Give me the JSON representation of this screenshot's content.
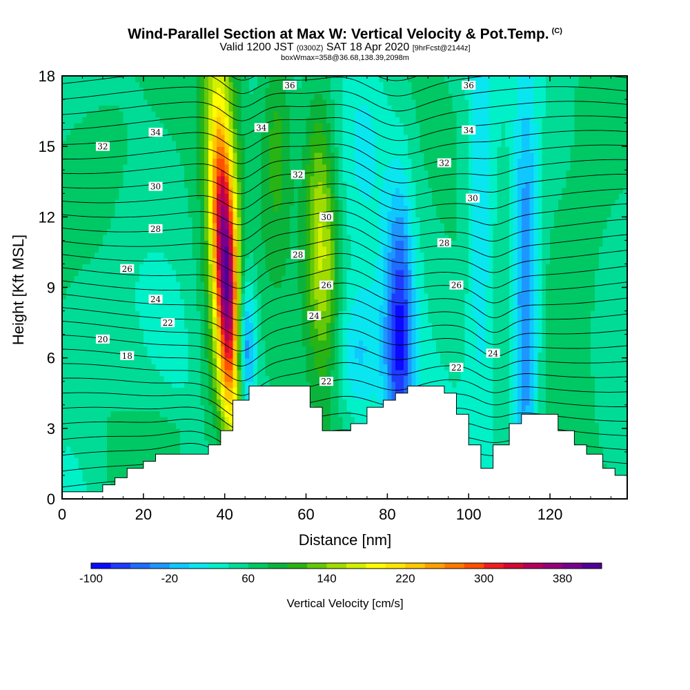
{
  "title": {
    "main": "Wind-Parallel Section at Max W: Vertical Velocity & Pot.Temp.",
    "copyright_mark": "(C)",
    "valid_prefix": "Valid 1200 JST",
    "valid_zulu": "(0300Z)",
    "valid_date": "SAT 18 Apr 2020",
    "forecast_info": "[9hrFcst@2144z]",
    "box_info": "boxWmax=358@36.68,138.39,2098m"
  },
  "chart_data": {
    "type": "heatmap",
    "xlabel": "Distance [nm]",
    "ylabel": "Height [Kft MSL]",
    "xlim": [
      0,
      139
    ],
    "ylim": [
      0,
      18
    ],
    "x_ticks": [
      "0",
      "20",
      "40",
      "60",
      "80",
      "100",
      "120"
    ],
    "y_ticks": [
      "0",
      "3",
      "6",
      "9",
      "12",
      "15",
      "18"
    ],
    "colorbar": {
      "label": "Vertical Velocity [cm/s]",
      "tick_labels": [
        "-100",
        "-20",
        "60",
        "140",
        "220",
        "300",
        "380"
      ],
      "levels_min": -100,
      "levels_max": 420,
      "step": 20,
      "colors": [
        "#0a0aff",
        "#1e3cff",
        "#1e6eff",
        "#1e96ff",
        "#0fc8ff",
        "#0ae6f0",
        "#00f0c8",
        "#00dc96",
        "#00c864",
        "#0ab43c",
        "#28b414",
        "#64c80a",
        "#a0dc00",
        "#d2f000",
        "#ffff00",
        "#ffe600",
        "#ffc800",
        "#ffa000",
        "#ff7800",
        "#ff5000",
        "#f01e1e",
        "#d20a32",
        "#b4005a",
        "#960078",
        "#78008c",
        "#500096"
      ]
    },
    "theta_labels": [
      {
        "value": "36",
        "x": 56,
        "y": 17.6
      },
      {
        "value": "36",
        "x": 100,
        "y": 17.6
      },
      {
        "value": "34",
        "x": 23,
        "y": 15.6
      },
      {
        "value": "34",
        "x": 49,
        "y": 15.8
      },
      {
        "value": "34",
        "x": 100,
        "y": 15.7
      },
      {
        "value": "32",
        "x": 10,
        "y": 15.0
      },
      {
        "value": "32",
        "x": 58,
        "y": 13.8
      },
      {
        "value": "32",
        "x": 94,
        "y": 14.3
      },
      {
        "value": "30",
        "x": 23,
        "y": 13.3
      },
      {
        "value": "30",
        "x": 65,
        "y": 12.0
      },
      {
        "value": "30",
        "x": 101,
        "y": 12.8
      },
      {
        "value": "28",
        "x": 23,
        "y": 11.5
      },
      {
        "value": "28",
        "x": 58,
        "y": 10.4
      },
      {
        "value": "28",
        "x": 94,
        "y": 10.9
      },
      {
        "value": "26",
        "x": 16,
        "y": 9.8
      },
      {
        "value": "26",
        "x": 65,
        "y": 9.1
      },
      {
        "value": "26",
        "x": 97,
        "y": 9.1
      },
      {
        "value": "24",
        "x": 23,
        "y": 8.5
      },
      {
        "value": "24",
        "x": 62,
        "y": 7.8
      },
      {
        "value": "24",
        "x": 106,
        "y": 6.2
      },
      {
        "value": "22",
        "x": 26,
        "y": 7.5
      },
      {
        "value": "22",
        "x": 65,
        "y": 5.0
      },
      {
        "value": "22",
        "x": 97,
        "y": 5.6
      },
      {
        "value": "20",
        "x": 10,
        "y": 6.8
      },
      {
        "value": "18",
        "x": 16,
        "y": 6.1
      }
    ],
    "terrain_kft": [
      [
        0,
        0.3
      ],
      [
        10,
        0.3
      ],
      [
        10,
        0.6
      ],
      [
        13,
        0.6
      ],
      [
        13,
        0.9
      ],
      [
        16,
        0.9
      ],
      [
        16,
        1.3
      ],
      [
        20,
        1.3
      ],
      [
        20,
        1.6
      ],
      [
        23,
        1.6
      ],
      [
        23,
        1.9
      ],
      [
        36,
        1.9
      ],
      [
        36,
        2.3
      ],
      [
        39,
        2.3
      ],
      [
        39,
        2.9
      ],
      [
        42,
        2.9
      ],
      [
        42,
        4.2
      ],
      [
        46,
        4.2
      ],
      [
        46,
        4.8
      ],
      [
        61,
        4.8
      ],
      [
        61,
        3.9
      ],
      [
        64,
        3.9
      ],
      [
        64,
        2.9
      ],
      [
        71,
        2.9
      ],
      [
        71,
        3.2
      ],
      [
        75,
        3.2
      ],
      [
        75,
        3.9
      ],
      [
        79,
        3.9
      ],
      [
        79,
        4.2
      ],
      [
        82,
        4.2
      ],
      [
        82,
        4.5
      ],
      [
        85,
        4.5
      ],
      [
        85,
        4.8
      ],
      [
        94,
        4.8
      ],
      [
        94,
        4.5
      ],
      [
        97,
        4.5
      ],
      [
        97,
        3.6
      ],
      [
        100,
        3.6
      ],
      [
        100,
        2.3
      ],
      [
        103,
        2.3
      ],
      [
        103,
        1.3
      ],
      [
        106,
        1.3
      ],
      [
        106,
        2.3
      ],
      [
        110,
        2.3
      ],
      [
        110,
        3.2
      ],
      [
        113,
        3.2
      ],
      [
        113,
        3.6
      ],
      [
        122,
        3.6
      ],
      [
        122,
        2.9
      ],
      [
        126,
        2.9
      ],
      [
        126,
        2.3
      ],
      [
        129,
        2.3
      ],
      [
        129,
        1.9
      ],
      [
        133,
        1.9
      ],
      [
        133,
        1.3
      ],
      [
        136,
        1.3
      ],
      [
        136,
        1.0
      ],
      [
        139,
        1.0
      ]
    ]
  }
}
